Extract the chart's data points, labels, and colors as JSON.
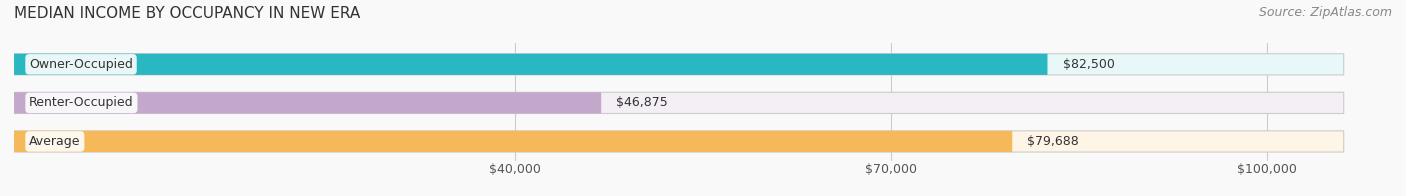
{
  "title": "MEDIAN INCOME BY OCCUPANCY IN NEW ERA",
  "source": "Source: ZipAtlas.com",
  "categories": [
    "Owner-Occupied",
    "Renter-Occupied",
    "Average"
  ],
  "values": [
    82500,
    46875,
    79688
  ],
  "value_labels": [
    "$82,500",
    "$46,875",
    "$79,688"
  ],
  "bar_colors": [
    "#29b8c2",
    "#c4a8cc",
    "#f5b95a"
  ],
  "bar_bg_colors": [
    "#e8f7f8",
    "#f3eff5",
    "#fef5e7"
  ],
  "x_ticks": [
    40000,
    70000,
    100000
  ],
  "x_tick_labels": [
    "$40,000",
    "$70,000",
    "$100,000"
  ],
  "xlim": [
    0,
    110000
  ],
  "background_color": "#f9f9f9",
  "title_fontsize": 11,
  "source_fontsize": 9,
  "bar_label_fontsize": 9,
  "category_fontsize": 9,
  "tick_fontsize": 9
}
